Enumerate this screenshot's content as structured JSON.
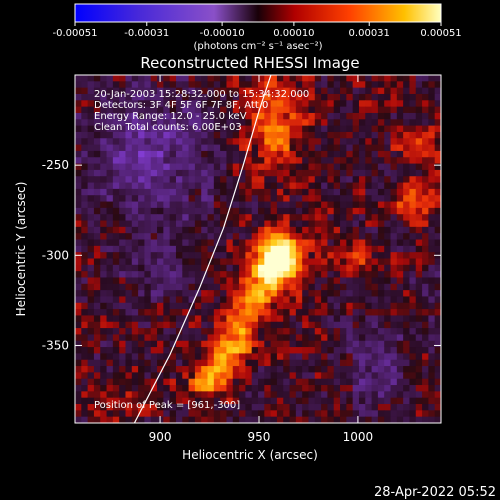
{
  "chart_data": {
    "type": "heatmap",
    "title": "Reconstructed RHESSI Image",
    "xlabel": "Heliocentric X (arcsec)",
    "ylabel": "Heliocentric Y (arcsec)",
    "xlim": [
      857,
      1042
    ],
    "ylim": [
      -393,
      -200
    ],
    "x_ticks": [
      900,
      950,
      1000
    ],
    "y_ticks": [
      -250,
      -300,
      -350
    ],
    "colorbar": {
      "units_label": "(photons cm⁻² s⁻¹ asec⁻²)",
      "range": [
        -0.00051,
        0.00051
      ],
      "ticks": [
        "-0.00051",
        "-0.00031",
        "-0.00010",
        "0.00010",
        "0.00031",
        "0.00051"
      ]
    },
    "annotations": [
      "20-Jan-2003 15:28:32.000 to 15:34:32.000",
      "Detectors: 3F 4F 5F 6F 7F 8F, Att 0",
      "Energy Range: 12.0 - 25.0 keV",
      "Clean     Total counts: 6.00E+03"
    ],
    "peak_label": "Position of Peak = [961,-300]",
    "peak_position": [
      961,
      -300
    ],
    "peak_value": 0.00051,
    "colors": {
      "negative": "#7a3ac0",
      "zero": "#1a0810",
      "positive": "#ff3010",
      "peak": "#ffffd0"
    }
  },
  "footer": {
    "timestamp": "28-Apr-2022 05:52"
  }
}
